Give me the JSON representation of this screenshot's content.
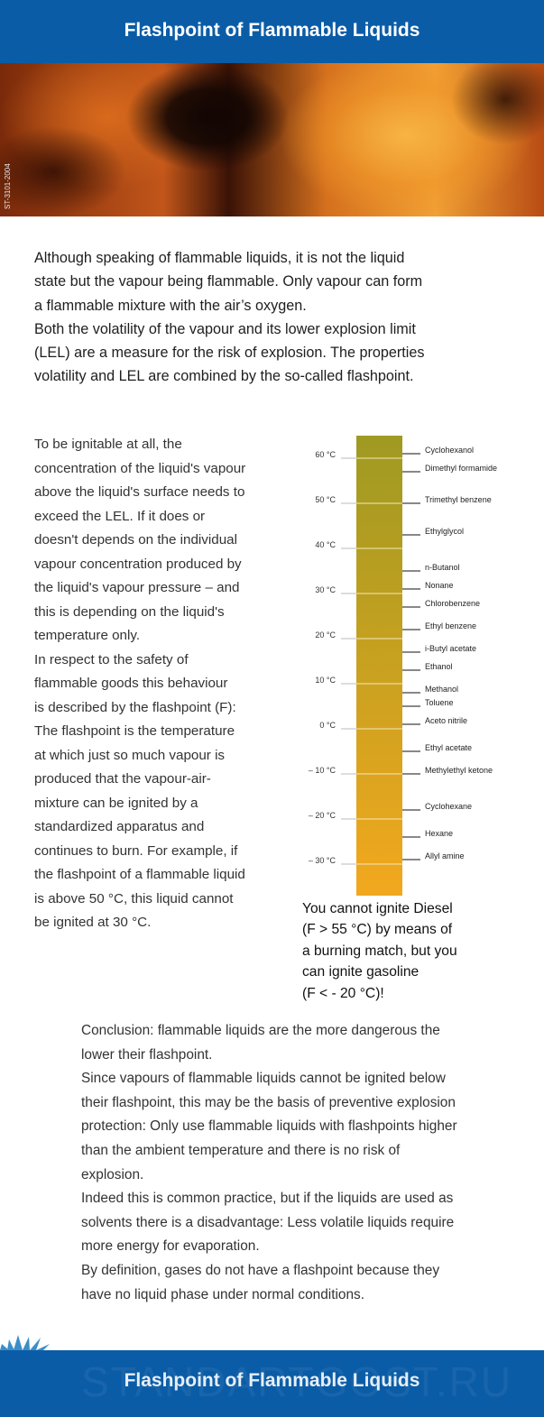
{
  "header": {
    "title": "Flashpoint of Flammable Liquids"
  },
  "image": {
    "side_code": "ST-3101-2004"
  },
  "intro": {
    "lines": [
      "Although speaking of flammable liquids, it is not the liquid",
      "state but the vapour being flammable. Only vapour can form",
      "a flammable mixture with the air’s oxygen.",
      "Both the volatility of the vapour and its lower explosion limit",
      "(LEL) are a measure for the risk of explosion. The properties",
      "volatility and LEL are combined by the so-called flashpoint."
    ]
  },
  "left_text": {
    "lines": [
      "To be ignitable at all, the",
      "concentration of the liquid's vapour",
      "above the liquid's surface needs to",
      "exceed the LEL. If it does or",
      "doesn't depends on the individual",
      "vapour concentration produced by",
      "the liquid's vapour pressure – and",
      "this is depending on the liquid's",
      "temperature only.",
      "In respect to the safety of",
      "flammable goods this behaviour",
      "is described by the flashpoint (F):",
      "The flashpoint is the temperature",
      "at which just so much vapour is",
      "produced that the vapour-air-",
      "mixture can be ignited by a",
      "standardized apparatus and",
      "continues to burn. For example, if",
      "the flashpoint of a flammable liquid",
      "is above 50 °C, this liquid cannot",
      "be ignited at 30 °C."
    ]
  },
  "chart_data": {
    "type": "scale",
    "unit": "°C",
    "ylim": [
      -37,
      65
    ],
    "ticks": [
      {
        "value": 60,
        "label": "60 °C"
      },
      {
        "value": 50,
        "label": "50 °C"
      },
      {
        "value": 40,
        "label": "40 °C"
      },
      {
        "value": 30,
        "label": "30 °C"
      },
      {
        "value": 20,
        "label": "20 °C"
      },
      {
        "value": 10,
        "label": "10 °C"
      },
      {
        "value": 0,
        "label": "0 °C"
      },
      {
        "value": -10,
        "label": "– 10 °C"
      },
      {
        "value": -20,
        "label": "– 20 °C"
      },
      {
        "value": -30,
        "label": "– 30 °C"
      }
    ],
    "compounds": [
      {
        "name": "Cyclohexanol",
        "flashpoint": 61
      },
      {
        "name": "Dimethyl formamide",
        "flashpoint": 57
      },
      {
        "name": "Trimethyl benzene",
        "flashpoint": 50
      },
      {
        "name": "Ethylglycol",
        "flashpoint": 43
      },
      {
        "name": "n-Butanol",
        "flashpoint": 35
      },
      {
        "name": "Nonane",
        "flashpoint": 31
      },
      {
        "name": "Chlorobenzene",
        "flashpoint": 27
      },
      {
        "name": "Ethyl benzene",
        "flashpoint": 22
      },
      {
        "name": "i-Butyl acetate",
        "flashpoint": 17
      },
      {
        "name": "Ethanol",
        "flashpoint": 13
      },
      {
        "name": "Methanol",
        "flashpoint": 8
      },
      {
        "name": "Toluene",
        "flashpoint": 5
      },
      {
        "name": "Aceto nitrile",
        "flashpoint": 1
      },
      {
        "name": "Ethyl acetate",
        "flashpoint": -5
      },
      {
        "name": "Methylethyl ketone",
        "flashpoint": -10
      },
      {
        "name": "Cyclohexane",
        "flashpoint": -18
      },
      {
        "name": "Hexane",
        "flashpoint": -24
      },
      {
        "name": "Allyl amine",
        "flashpoint": -29
      }
    ],
    "colors": {
      "top": "#9f9a22",
      "bottom": "#f2a81e"
    }
  },
  "caption": {
    "lines": [
      "You cannot ignite Diesel",
      "(F > 55 °C) by means of",
      "a burning match, but you",
      "can ignite gasoline",
      "(F < - 20 °C)!"
    ]
  },
  "conclusion": {
    "lines": [
      "Conclusion: flammable liquids are the more dangerous the",
      "lower their flashpoint.",
      "Since vapours of flammable liquids cannot be ignited below",
      "their flashpoint, this may be the basis of preventive explosion",
      "protection: Only use flammable liquids with flashpoints higher",
      "than the ambient temperature and there is no risk of",
      "explosion.",
      "Indeed this is common practice, but if the liquids are used as",
      "solvents there is a disadvantage: Less volatile liquids require",
      "more energy for evaporation.",
      "By definition, gases do not have a flashpoint because they",
      "have no liquid phase under normal conditions."
    ]
  },
  "footer": {
    "title": "Flashpoint of Flammable Liquids",
    "watermark": "STANDARTGOST.RU"
  },
  "colors": {
    "brand_blue": "#0b5ca6"
  }
}
